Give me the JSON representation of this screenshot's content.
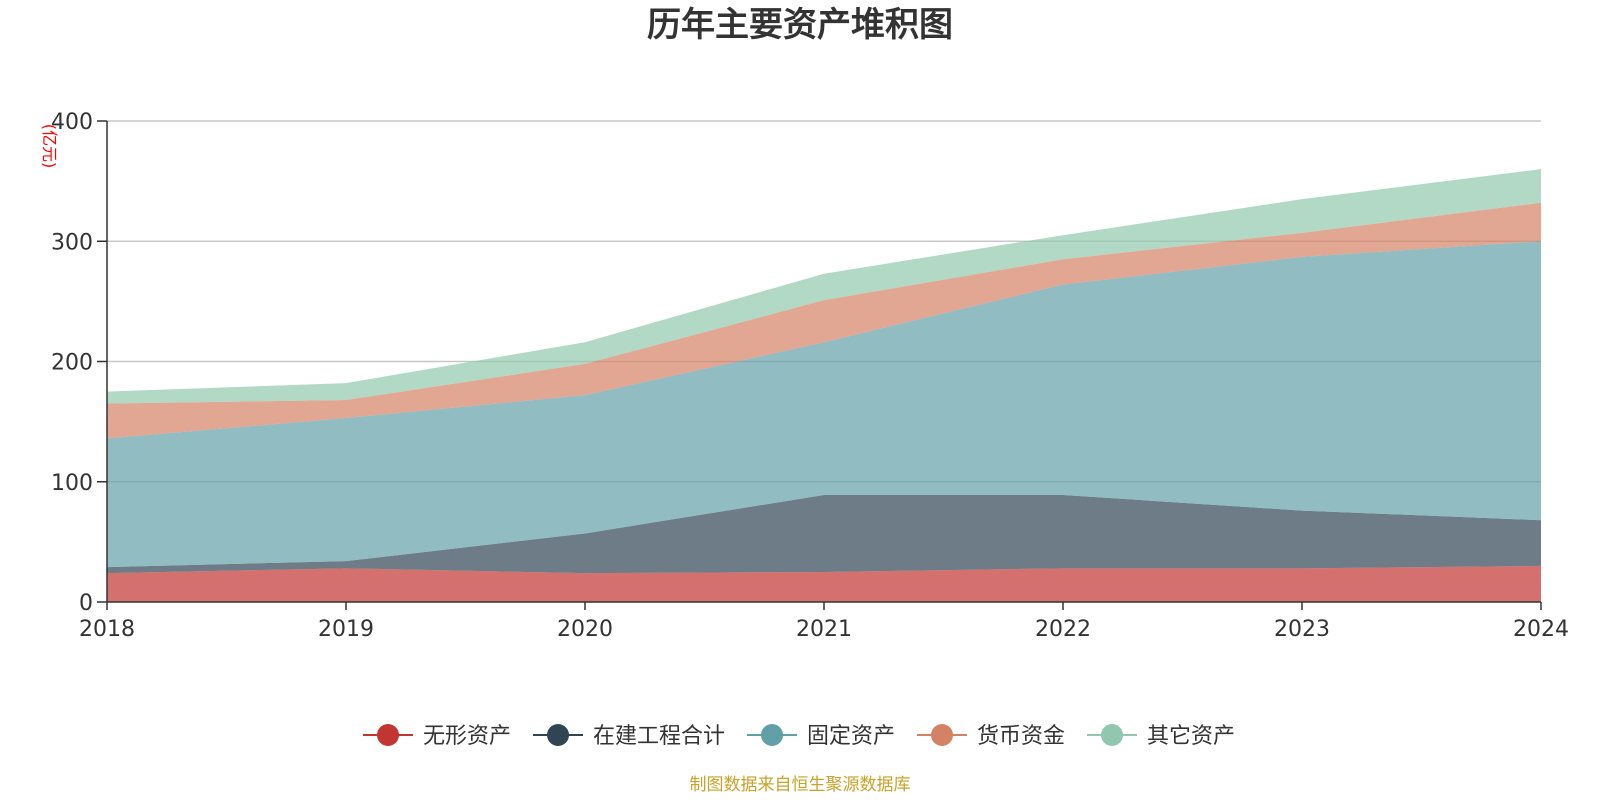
{
  "chart_data": {
    "type": "area",
    "stacked": true,
    "title": "历年主要资产堆积图",
    "unit_label": "(亿元)",
    "xlabel": "",
    "ylabel": "亿元",
    "categories": [
      "2018",
      "2019",
      "2020",
      "2021",
      "2022",
      "2023",
      "2024"
    ],
    "ylim": [
      0,
      400
    ],
    "yticks": [
      0,
      100,
      200,
      300,
      400
    ],
    "grid": true,
    "legend_position": "bottom",
    "series": [
      {
        "name": "无形资产",
        "color": "#c23531",
        "values": [
          24,
          28,
          24,
          25,
          28,
          28,
          30
        ]
      },
      {
        "name": "在建工程合计",
        "color": "#2f4554",
        "values": [
          5,
          6,
          33,
          64,
          61,
          48,
          38
        ]
      },
      {
        "name": "固定资产",
        "color": "#61a0a8",
        "values": [
          107,
          119,
          115,
          127,
          175,
          211,
          232
        ]
      },
      {
        "name": "货币资金",
        "color": "#d48265",
        "values": [
          29,
          15,
          26,
          35,
          21,
          20,
          32
        ]
      },
      {
        "name": "其它资产",
        "color": "#91c7ae",
        "values": [
          10,
          14,
          18,
          22,
          20,
          28,
          28
        ]
      }
    ],
    "source": "制图数据来自恒生聚源数据库"
  }
}
